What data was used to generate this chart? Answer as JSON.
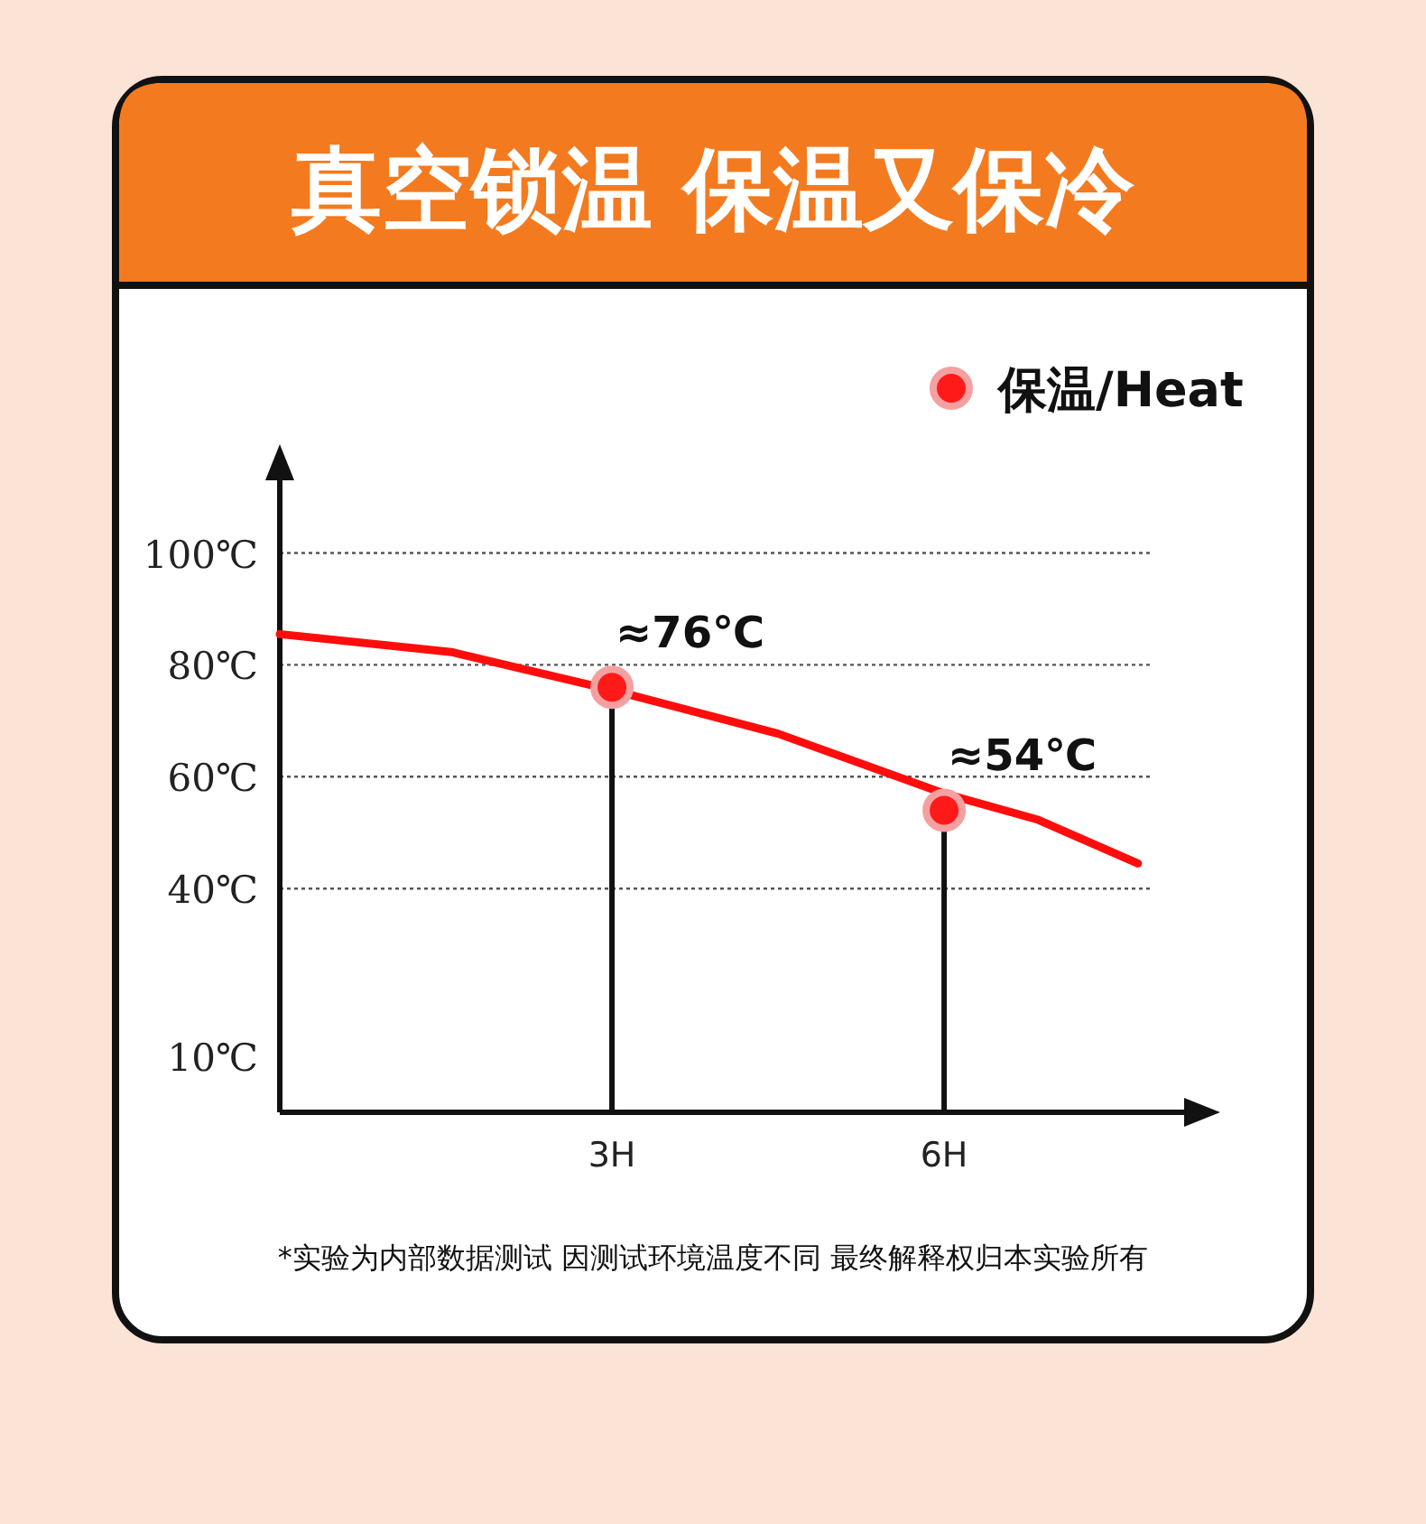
{
  "chart_data": {
    "type": "line",
    "title": "真空锁温 保温又保冷",
    "annotations": [
      "*实验为内部数据测试 因测试环境温度不同 最终解释权归本实验所有"
    ],
    "xlim": [
      0,
      8.2
    ],
    "xticks": [
      {
        "value": 3,
        "label": "3H"
      },
      {
        "value": 6,
        "label": "6H"
      }
    ],
    "ylim": [
      0,
      113
    ],
    "yticks": [
      {
        "value": 10,
        "label": "10℃"
      },
      {
        "value": 40,
        "label": "40℃"
      },
      {
        "value": 60,
        "label": "60℃"
      },
      {
        "value": 80,
        "label": "80℃"
      },
      {
        "value": 100,
        "label": "100℃"
      }
    ],
    "ref_lines": [
      {
        "axis": "y",
        "value": 40,
        "line_style": "dotted",
        "color": "#555555"
      },
      {
        "axis": "y",
        "value": 60,
        "line_style": "dotted",
        "color": "#555555"
      },
      {
        "axis": "y",
        "value": 80,
        "line_style": "dotted",
        "color": "#555555"
      },
      {
        "axis": "y",
        "value": 100,
        "line_style": "dotted",
        "color": "#555555"
      }
    ],
    "legend": "top right",
    "series": [
      {
        "type": "line",
        "color": "#ff0d0d",
        "x": [
          0,
          1.55,
          3,
          4.5,
          6,
          6.85,
          7.75
        ],
        "values": [
          85.5,
          82.3,
          75.5,
          67.7,
          57,
          52.3,
          44.5
        ],
        "line_style": "solid",
        "marker": "none"
      },
      {
        "type": "lollipop",
        "name": "保温/Heat",
        "color": "#ff1a1a",
        "x": [
          3,
          6
        ],
        "values": [
          76,
          54
        ],
        "value_labels": [
          "≈76℃",
          "≈54℃"
        ],
        "marker": "circle"
      }
    ]
  }
}
